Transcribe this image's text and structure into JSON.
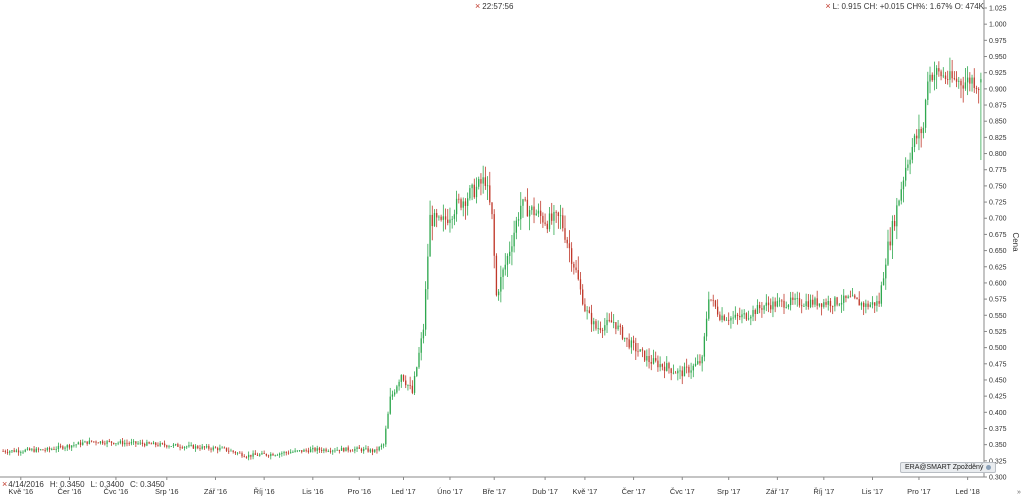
{
  "header": {
    "time": "22:57:56",
    "stats_line": "L: 0.915  CH: +0.015  CH%: 1.67%  O: 474K"
  },
  "bar_info": {
    "date": "4/14/2016",
    "high": "H: 0.3450",
    "low": "L: 0.3400",
    "close": "C: 0.3450"
  },
  "badge": {
    "label": "ERA@SMART Zpožděný"
  },
  "colors": {
    "up": "#2fa84f",
    "down": "#c0392b",
    "axis": "#666666"
  },
  "chart_data": {
    "type": "candlestick",
    "ylabel": "Cena",
    "ylim": [
      0.3,
      1.025
    ],
    "yticks": [
      "0.300",
      "0.325",
      "0.350",
      "0.375",
      "0.400",
      "0.425",
      "0.450",
      "0.475",
      "0.500",
      "0.525",
      "0.550",
      "0.575",
      "0.600",
      "0.625",
      "0.650",
      "0.675",
      "0.700",
      "0.725",
      "0.750",
      "0.775",
      "0.800",
      "0.825",
      "0.850",
      "0.875",
      "0.900",
      "0.925",
      "0.950",
      "0.975",
      "1.000",
      "1.025"
    ],
    "xticks": [
      {
        "label": "Kvě '16",
        "i": 8
      },
      {
        "label": "Čer '16",
        "i": 30
      },
      {
        "label": "Čvc '16",
        "i": 51
      },
      {
        "label": "Srp '16",
        "i": 74
      },
      {
        "label": "Zář '16",
        "i": 96
      },
      {
        "label": "Říj '16",
        "i": 118
      },
      {
        "label": "Lis '16",
        "i": 140
      },
      {
        "label": "Pro '16",
        "i": 161
      },
      {
        "label": "Led '17",
        "i": 181
      },
      {
        "label": "Úno '17",
        "i": 202
      },
      {
        "label": "Bře '17",
        "i": 222
      },
      {
        "label": "Dub '17",
        "i": 245
      },
      {
        "label": "Kvě '17",
        "i": 263
      },
      {
        "label": "Čer '17",
        "i": 285
      },
      {
        "label": "Čvc '17",
        "i": 307
      },
      {
        "label": "Srp '17",
        "i": 328
      },
      {
        "label": "Zář '17",
        "i": 350
      },
      {
        "label": "Říj '17",
        "i": 371
      },
      {
        "label": "Lis '17",
        "i": 393
      },
      {
        "label": "Pro '17",
        "i": 414
      },
      {
        "label": "Led '18",
        "i": 436
      }
    ],
    "anchors": [
      [
        0,
        0.34
      ],
      [
        20,
        0.342
      ],
      [
        40,
        0.355
      ],
      [
        60,
        0.352
      ],
      [
        80,
        0.348
      ],
      [
        100,
        0.343
      ],
      [
        110,
        0.333
      ],
      [
        120,
        0.335
      ],
      [
        140,
        0.342
      ],
      [
        160,
        0.343
      ],
      [
        168,
        0.34
      ],
      [
        172,
        0.35
      ],
      [
        175,
        0.42
      ],
      [
        180,
        0.46
      ],
      [
        185,
        0.43
      ],
      [
        190,
        0.53
      ],
      [
        193,
        0.7
      ],
      [
        198,
        0.69
      ],
      [
        205,
        0.72
      ],
      [
        212,
        0.74
      ],
      [
        218,
        0.76
      ],
      [
        221,
        0.7
      ],
      [
        223,
        0.58
      ],
      [
        228,
        0.64
      ],
      [
        234,
        0.72
      ],
      [
        240,
        0.71
      ],
      [
        246,
        0.695
      ],
      [
        252,
        0.7
      ],
      [
        258,
        0.63
      ],
      [
        263,
        0.56
      ],
      [
        268,
        0.53
      ],
      [
        276,
        0.54
      ],
      [
        282,
        0.51
      ],
      [
        292,
        0.48
      ],
      [
        300,
        0.47
      ],
      [
        306,
        0.46
      ],
      [
        312,
        0.47
      ],
      [
        316,
        0.48
      ],
      [
        319,
        0.58
      ],
      [
        324,
        0.55
      ],
      [
        330,
        0.545
      ],
      [
        336,
        0.55
      ],
      [
        344,
        0.565
      ],
      [
        355,
        0.57
      ],
      [
        365,
        0.57
      ],
      [
        375,
        0.57
      ],
      [
        383,
        0.575
      ],
      [
        390,
        0.565
      ],
      [
        396,
        0.57
      ],
      [
        399,
        0.64
      ],
      [
        403,
        0.7
      ],
      [
        408,
        0.78
      ],
      [
        412,
        0.82
      ],
      [
        416,
        0.84
      ],
      [
        418,
        0.92
      ],
      [
        422,
        0.925
      ],
      [
        428,
        0.915
      ],
      [
        434,
        0.91
      ],
      [
        438,
        0.915
      ],
      [
        441,
        0.905
      ]
    ],
    "last": {
      "o": 0.91,
      "h": 0.925,
      "l": 0.79,
      "c": 0.915
    }
  }
}
